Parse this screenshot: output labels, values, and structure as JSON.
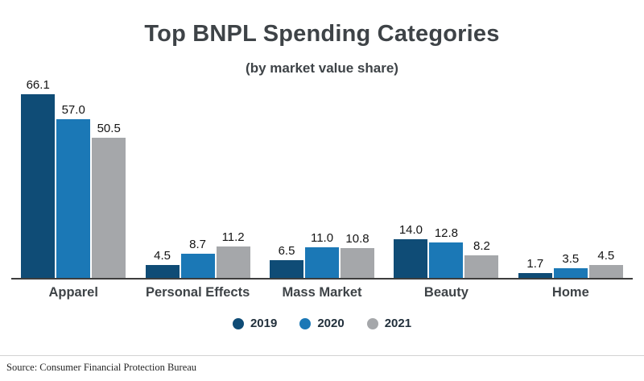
{
  "chart_data": {
    "type": "bar",
    "title": "Top BNPL Spending Categories",
    "subtitle": "(by market value share)",
    "categories": [
      "Apparel",
      "Personal Effects",
      "Mass Market",
      "Beauty",
      "Home"
    ],
    "series": [
      {
        "name": "2019",
        "color": "#0f4c76",
        "values": [
          66.1,
          4.5,
          6.5,
          14.0,
          1.7
        ]
      },
      {
        "name": "2020",
        "color": "#1b78b6",
        "values": [
          57.0,
          8.7,
          11.0,
          12.8,
          3.5
        ]
      },
      {
        "name": "2021",
        "color": "#a5a7aa",
        "values": [
          50.5,
          11.2,
          10.8,
          8.2,
          4.5
        ]
      }
    ],
    "value_label_decimals": 1,
    "ylim": [
      0,
      70
    ],
    "grid": false,
    "legend_position": "bottom",
    "source": "Source: Consumer Financial Protection Bureau"
  }
}
